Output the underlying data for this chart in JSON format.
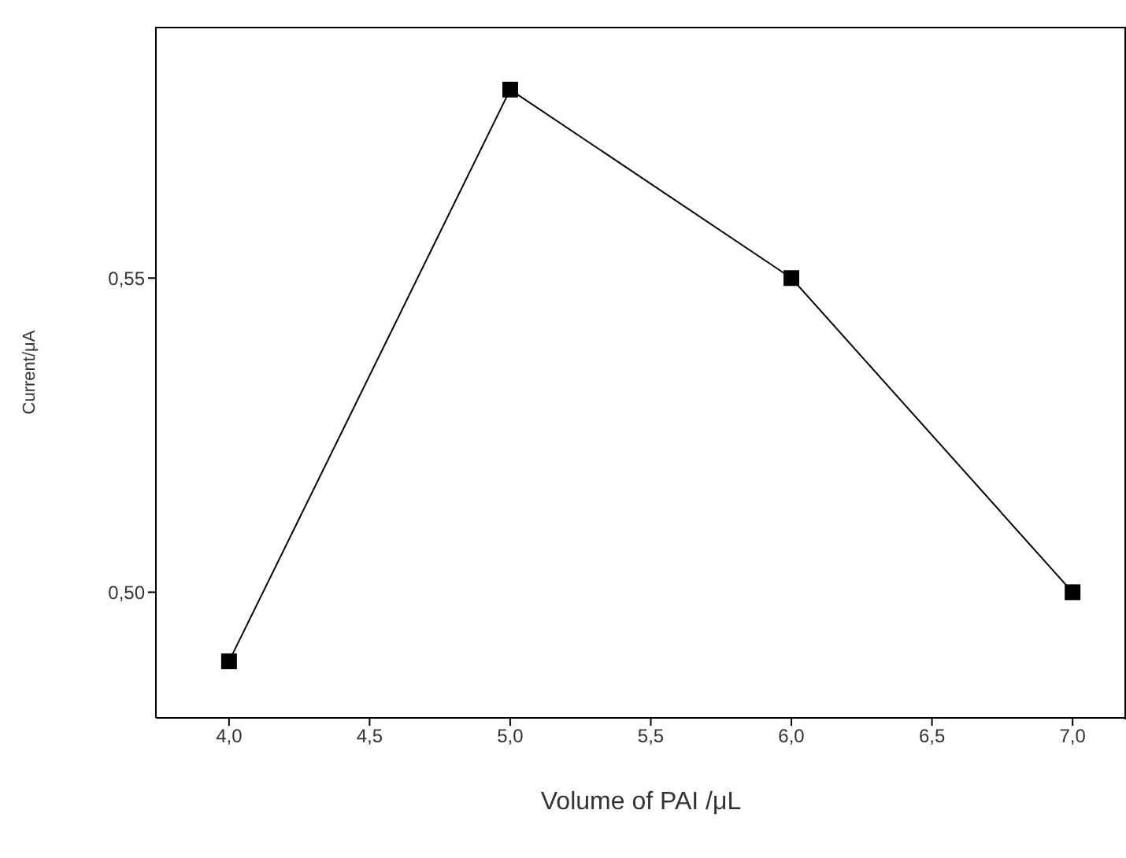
{
  "chart_data": {
    "type": "line",
    "xlabel": "Volume of PAI /μL",
    "ylabel": "Current/μA",
    "x": [
      4,
      5,
      6,
      7
    ],
    "series": [
      {
        "color": "#000000",
        "values": [
          0.489,
          0.58,
          0.55,
          0.5
        ]
      }
    ],
    "xlim": [
      3.74,
      7.19
    ],
    "ylim": [
      0.48,
      0.59
    ],
    "xticks": [
      {
        "value": 4,
        "label": "4,0"
      },
      {
        "value": 4.5,
        "label": "4,5"
      },
      {
        "value": 5,
        "label": "5,0"
      },
      {
        "value": 5.5,
        "label": "5,5"
      },
      {
        "value": 6,
        "label": "6,0"
      },
      {
        "value": 6.5,
        "label": "6,5"
      },
      {
        "value": 7,
        "label": "7,0"
      }
    ],
    "yticks": [
      {
        "value": 0.5,
        "label": "0,50"
      },
      {
        "value": 0.55,
        "label": "0,55"
      }
    ],
    "marker": "square",
    "line_style": "solid",
    "grid": false,
    "legend": false
  }
}
